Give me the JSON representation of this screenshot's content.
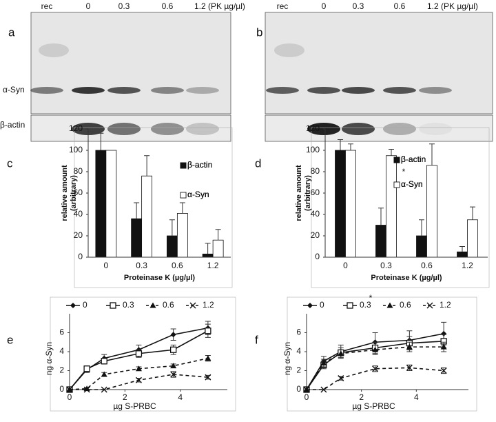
{
  "blots": [
    {
      "letter": "a",
      "lanes": [
        "rec",
        "0",
        "0.3",
        "0.6",
        "1.2 (PK µg/µl)"
      ],
      "bands": [
        "α-Syn",
        "β-actin"
      ]
    },
    {
      "letter": "b",
      "lanes": [
        "rec",
        "0",
        "0.3",
        "0.6",
        "1.2 (PK µg/µl)"
      ]
    }
  ],
  "chart_data": [
    {
      "type": "bar",
      "letter": "c",
      "ylabel": [
        "relative amount",
        "(arbitrary)"
      ],
      "xlabel": "Proteinase K (µg/µl)",
      "categories": [
        "0",
        "0.3",
        "0.6",
        "1.2"
      ],
      "ylim": [
        0,
        120
      ],
      "yticks": [
        0,
        20,
        40,
        60,
        80,
        100,
        120
      ],
      "series": [
        {
          "name": "β-actin",
          "color": "#111111",
          "values": [
            100,
            36,
            20,
            3
          ],
          "errors": [
            16,
            15,
            15,
            10
          ]
        },
        {
          "name": "α-Syn",
          "color": "#ffffff",
          "values": [
            100,
            76,
            41,
            16
          ],
          "errors": [
            0,
            19,
            10,
            10
          ]
        }
      ]
    },
    {
      "type": "bar",
      "letter": "d",
      "ylabel": [
        "relative amount",
        "(arbitrary)"
      ],
      "xlabel": "Proteinase K (µg/µl)",
      "categories": [
        "0",
        "0.3",
        "0.6",
        "1.2"
      ],
      "ylim": [
        0,
        120
      ],
      "yticks": [
        0,
        20,
        40,
        60,
        80,
        100,
        120
      ],
      "annotation": "*",
      "series": [
        {
          "name": "β-actin",
          "color": "#111111",
          "values": [
            100,
            30,
            20,
            5
          ],
          "errors": [
            10,
            16,
            15,
            5
          ]
        },
        {
          "name": "α-Syn",
          "color": "#ffffff",
          "values": [
            100,
            95,
            86,
            35
          ],
          "errors": [
            6,
            6,
            20,
            12
          ]
        }
      ]
    },
    {
      "type": "line",
      "letter": "e",
      "ylabel": "ng α-Syn",
      "xlabel": "µg S-PRBC",
      "x": [
        0,
        0.625,
        1.25,
        2.5,
        3.75,
        5
      ],
      "xlim": [
        0,
        5.7
      ],
      "xticks": [
        0,
        2,
        4
      ],
      "ylim": [
        0,
        8
      ],
      "yticks": [
        0,
        2,
        4,
        6
      ],
      "series": [
        {
          "name": "0",
          "color": "#111111",
          "marker": "diamond",
          "dash": "solid",
          "values": [
            0,
            2.1,
            3.3,
            4.2,
            5.8,
            6.5
          ],
          "errors": [
            0,
            0.3,
            0.4,
            0.5,
            0.6,
            0.7
          ]
        },
        {
          "name": "0.3",
          "color": "#111111",
          "marker": "square-open",
          "dash": "solid",
          "values": [
            0,
            2.2,
            3.0,
            3.8,
            4.2,
            6.2
          ],
          "errors": [
            0,
            0.3,
            0.3,
            0.4,
            0.5,
            0.7
          ]
        },
        {
          "name": "0.6",
          "color": "#111111",
          "marker": "triangle",
          "dash": "dashed",
          "values": [
            0,
            0.1,
            1.6,
            2.2,
            2.5,
            3.3
          ],
          "errors": [
            0,
            0.1,
            0.2,
            0.2,
            0.2,
            0.3
          ]
        },
        {
          "name": "1.2",
          "color": "#111111",
          "marker": "x",
          "dash": "dashed",
          "values": [
            0,
            0,
            0,
            1.0,
            1.6,
            1.3
          ],
          "errors": [
            0,
            0,
            0,
            0.2,
            0.3,
            0.2
          ]
        }
      ]
    },
    {
      "type": "line",
      "letter": "f",
      "ylabel": "ng α-Syn",
      "xlabel": "µg S-PRBC",
      "x": [
        0,
        0.625,
        1.25,
        2.5,
        3.75,
        5
      ],
      "xlim": [
        0,
        5.9
      ],
      "xticks": [
        0,
        2,
        4
      ],
      "ylim": [
        0,
        8
      ],
      "yticks": [
        0,
        2,
        4,
        6
      ],
      "annotation": "*",
      "series": [
        {
          "name": "0",
          "color": "#111111",
          "marker": "diamond",
          "dash": "solid",
          "values": [
            0,
            3.0,
            4.0,
            5.0,
            5.2,
            5.9
          ],
          "errors": [
            0,
            0.5,
            0.7,
            1.0,
            1.0,
            1.2
          ]
        },
        {
          "name": "0.3",
          "color": "#111111",
          "marker": "square-open",
          "dash": "solid",
          "values": [
            0,
            2.6,
            3.9,
            4.4,
            4.9,
            5.1
          ],
          "errors": [
            0,
            0.4,
            0.5,
            0.6,
            0.7,
            0.7
          ]
        },
        {
          "name": "0.6",
          "color": "#111111",
          "marker": "triangle",
          "dash": "dashed",
          "values": [
            0,
            2.8,
            3.8,
            4.2,
            4.5,
            4.5
          ],
          "errors": [
            0,
            0.4,
            0.4,
            0.5,
            0.5,
            0.5
          ]
        },
        {
          "name": "1.2",
          "color": "#111111",
          "marker": "x",
          "dash": "dashed",
          "values": [
            0,
            0,
            1.2,
            2.2,
            2.3,
            2.0
          ],
          "errors": [
            0,
            0,
            0.2,
            0.3,
            0.3,
            0.3
          ]
        }
      ]
    }
  ]
}
